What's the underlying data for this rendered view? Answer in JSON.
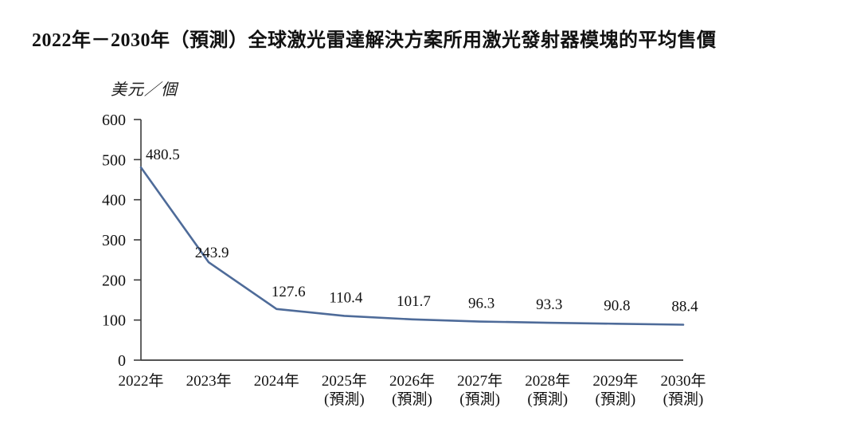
{
  "page": {
    "title": "2022年－2030年（預測）全球激光雷達解決方案所用激光發射器模塊的平均售價"
  },
  "chart_data": {
    "type": "line",
    "title": "2022年－2030年（預測）全球激光雷達解決方案所用激光發射器模塊的平均售價",
    "unit_label": "美元／個",
    "ylabel": "美元／個",
    "xlabel": "",
    "categories": [
      "2022年",
      "2023年",
      "2024年",
      "2025年",
      "2026年",
      "2027年",
      "2028年",
      "2029年",
      "2030年"
    ],
    "category_sublabels": [
      "",
      "",
      "",
      "(預測)",
      "(預測)",
      "(預測)",
      "(預測)",
      "(預測)",
      "(預測)"
    ],
    "values": [
      480.5,
      243.9,
      127.6,
      110.4,
      101.7,
      96.3,
      93.3,
      90.8,
      88.4
    ],
    "ylim": [
      0,
      600
    ],
    "yticks": [
      0,
      100,
      200,
      300,
      400,
      500,
      600
    ],
    "grid": false,
    "legend": "none",
    "line_color": "#4e6b99",
    "axis_color": "#3c3c3c",
    "label_color": "#111111"
  }
}
